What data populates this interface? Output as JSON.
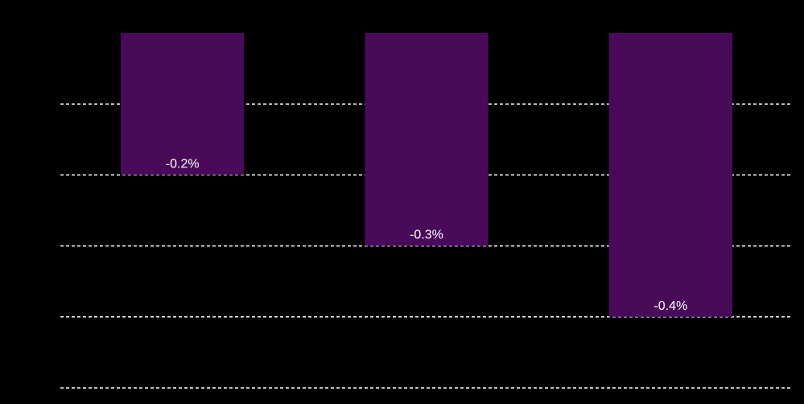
{
  "chart_data": {
    "type": "bar",
    "categories": [
      "",
      "",
      ""
    ],
    "values": [
      -0.2,
      -0.3,
      -0.4
    ],
    "data_labels": [
      "-0.2%",
      "-0.3%",
      "-0.4%"
    ],
    "title": "",
    "xlabel": "",
    "ylabel": "",
    "ylim": [
      -0.5,
      0.0
    ],
    "grid": true,
    "gridlines": [
      -0.1,
      -0.2,
      -0.3,
      -0.4,
      -0.5
    ],
    "bar_color": "#4a0a5a",
    "background": "#000000",
    "gridline_color": "#ffffff",
    "label_color": "#ffffff"
  }
}
